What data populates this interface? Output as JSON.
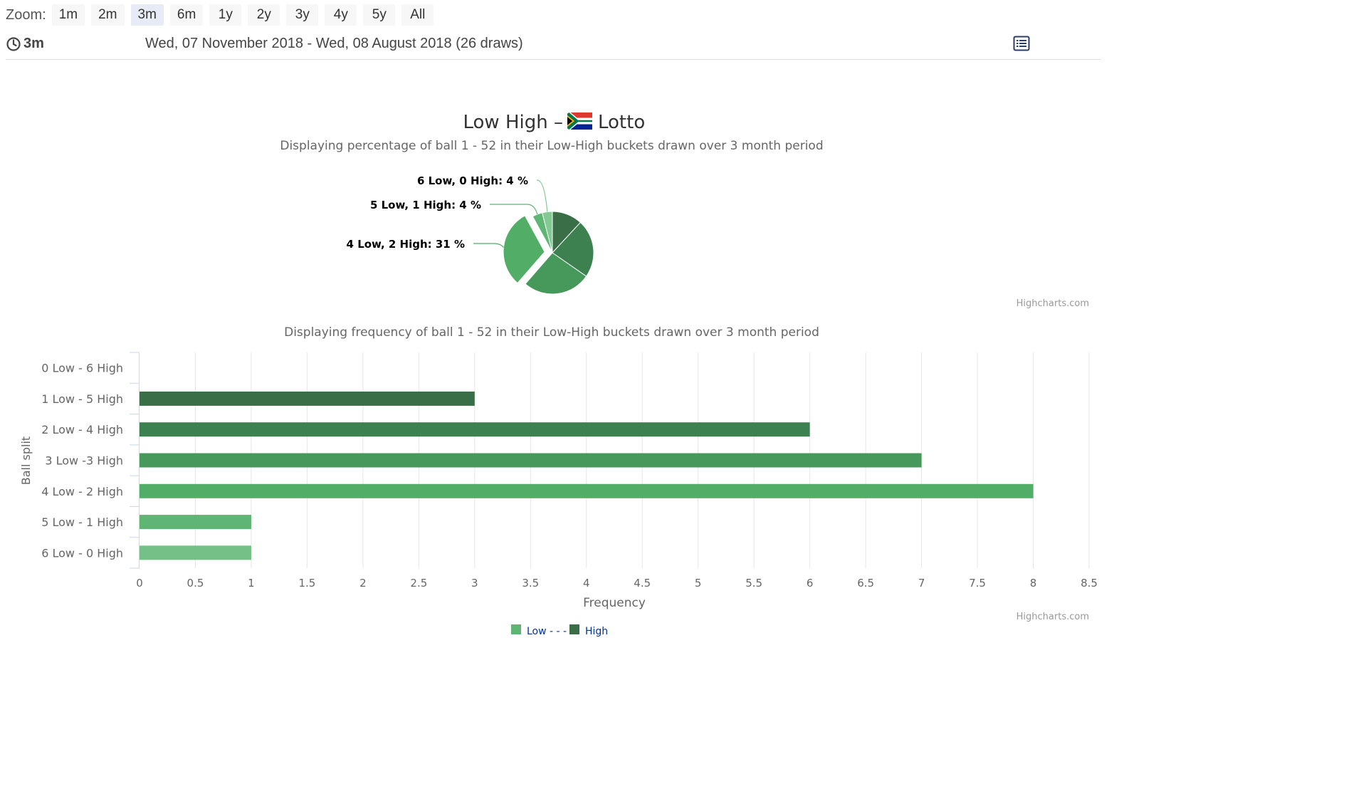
{
  "toolbar": {
    "zoom_label": "Zoom:",
    "zoom_options": [
      "1m",
      "2m",
      "3m",
      "6m",
      "1y",
      "2y",
      "3y",
      "4y",
      "5y",
      "All"
    ],
    "selected_zoom": "3m"
  },
  "range": {
    "current": "3m",
    "dates": "Wed, 07 November 2018 - Wed, 08 August 2018 (26 draws)"
  },
  "colors": {
    "series": [
      "#3a6e47",
      "#3e8150",
      "#46995b",
      "#52ad67",
      "#5fb574",
      "#75c086",
      "#84c893"
    ],
    "grid": "#e6e6e6",
    "axis_text": "#666666",
    "title_text": "#333333",
    "legend_text": "#003399"
  },
  "icons": {
    "clock": "clock-icon",
    "list": "list-icon",
    "flag": "south-africa-flag-icon"
  },
  "chart_data": [
    {
      "type": "pie",
      "title_prefix": "Low High –",
      "title_suffix": "Lotto",
      "subtitle": "Displaying percentage of ball 1 - 52 in their Low-High buckets drawn over 3 month period",
      "credits": "Highcharts.com",
      "slices": [
        {
          "name": "1 Low, 5 High",
          "value": 12,
          "color": "#3a6e47",
          "labeled": false
        },
        {
          "name": "2 Low, 4 High",
          "value": 23,
          "color": "#3e8150",
          "labeled": false
        },
        {
          "name": "3 Low, 3 High",
          "value": 27,
          "color": "#46995b",
          "labeled": false
        },
        {
          "name": "4 Low, 2 High",
          "value": 31,
          "color": "#52ad67",
          "labeled": true,
          "sliced": true,
          "label": "4 Low, 2 High: 31 %"
        },
        {
          "name": "5 Low, 1 High",
          "value": 4,
          "color": "#5fb574",
          "labeled": true,
          "label": "5 Low, 1 High: 4 %"
        },
        {
          "name": "6 Low, 0 High",
          "value": 4,
          "color": "#84c893",
          "labeled": true,
          "label": "6 Low, 0 High: 4 %"
        }
      ]
    },
    {
      "type": "bar",
      "subtitle": "Displaying frequency of ball 1 - 52 in their Low-High buckets drawn over 3 month period",
      "categories": [
        "0 Low - 6 High",
        "1 Low - 5 High",
        "2 Low - 4 High",
        "3 Low -3 High",
        "4 Low - 2 High",
        "5 Low - 1 High",
        "6 Low - 0 High"
      ],
      "values": [
        0,
        3,
        6,
        7,
        8,
        1,
        1
      ],
      "bar_colors": [
        "#3a6e47",
        "#3a6e47",
        "#3e8150",
        "#46995b",
        "#52ad67",
        "#5fb574",
        "#75c086"
      ],
      "xlabel": "Frequency",
      "ylabel": "Ball split",
      "xlim": [
        0,
        8.5
      ],
      "ticks": [
        "0",
        "0.5",
        "1",
        "1.5",
        "2",
        "2.5",
        "3",
        "3.5",
        "4",
        "4.5",
        "5",
        "5.5",
        "6",
        "6.5",
        "7",
        "7.5",
        "8",
        "8.5"
      ],
      "grid": true,
      "credits": "Highcharts.com",
      "legend": [
        {
          "name": "Low - - -",
          "color": "#5fb574"
        },
        {
          "name": "High",
          "color": "#3a6e47"
        }
      ],
      "legend_position": "bottom-center"
    }
  ]
}
